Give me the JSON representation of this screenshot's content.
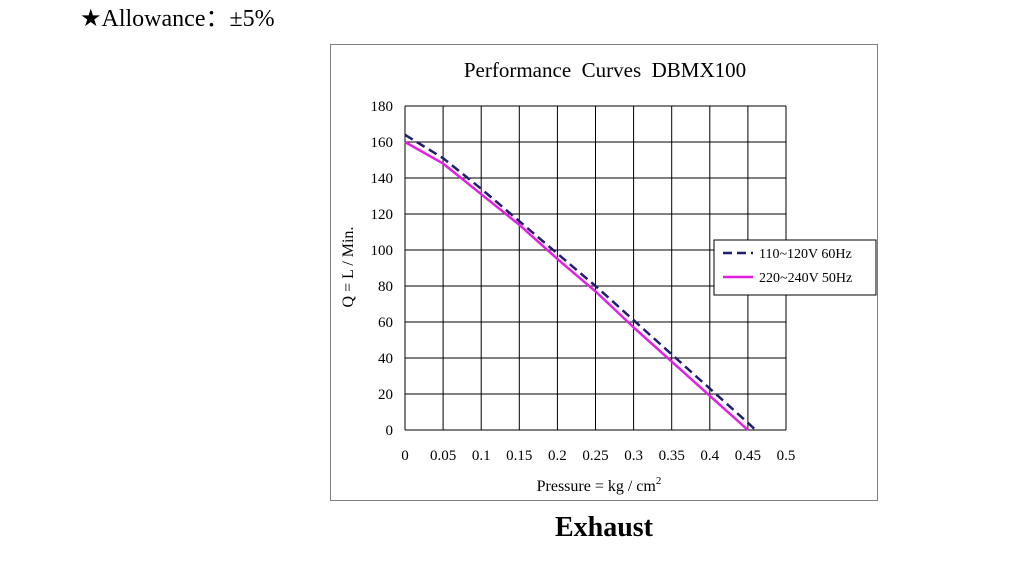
{
  "note": {
    "text": "★Allowance：±5%"
  },
  "caption": "Exhaust",
  "chart_data": {
    "type": "line",
    "title": "Performance  Curves  DBMX100",
    "xlabel": "Pressure = kg / cm",
    "xlabel_superscript": "2",
    "ylabel": "Q = L / Min.",
    "xlim": [
      0,
      0.5
    ],
    "ylim": [
      0,
      180
    ],
    "x_ticks": [
      "0",
      "0.05",
      "0.1",
      "0.15",
      "0.2",
      "0.25",
      "0.3",
      "0.35",
      "0.4",
      "0.45",
      "0.5"
    ],
    "y_ticks": [
      "0",
      "20",
      "40",
      "60",
      "80",
      "100",
      "120",
      "140",
      "160",
      "180"
    ],
    "grid": true,
    "legend_position": "right",
    "series": [
      {
        "name": "110~120V 60Hz",
        "color": "#1f1f6e",
        "style": "dashed",
        "x": [
          0,
          0.05,
          0.1,
          0.15,
          0.2,
          0.25,
          0.3,
          0.35,
          0.4,
          0.45,
          0.46
        ],
        "y": [
          164,
          151,
          134,
          116,
          98,
          80,
          61,
          42,
          23,
          4,
          0
        ]
      },
      {
        "name": "220~240V 50Hz",
        "color": "#e41ee4",
        "style": "solid",
        "x": [
          0,
          0.05,
          0.1,
          0.15,
          0.2,
          0.25,
          0.3,
          0.35,
          0.4,
          0.45
        ],
        "y": [
          160,
          148,
          131,
          114,
          95,
          77,
          57,
          38,
          19,
          0
        ]
      }
    ]
  }
}
